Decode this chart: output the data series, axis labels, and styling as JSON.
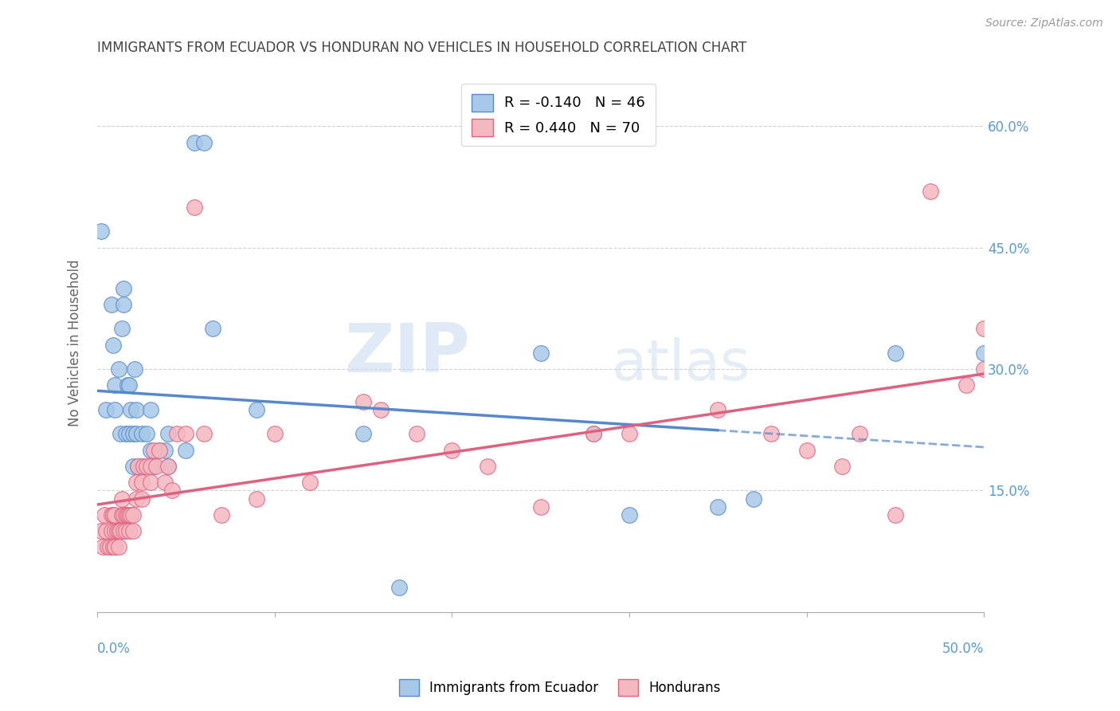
{
  "title": "IMMIGRANTS FROM ECUADOR VS HONDURAN NO VEHICLES IN HOUSEHOLD CORRELATION CHART",
  "source": "Source: ZipAtlas.com",
  "ylabel": "No Vehicles in Household",
  "right_ytick_labels": [
    "",
    "15.0%",
    "30.0%",
    "45.0%",
    "60.0%"
  ],
  "right_yticks": [
    0.0,
    0.15,
    0.3,
    0.45,
    0.6
  ],
  "xmin": 0.0,
  "xmax": 0.5,
  "ymin": 0.0,
  "ymax": 0.665,
  "ecuador_color": "#a8c8e8",
  "ecuador_line_color": "#5588cc",
  "honduran_color": "#f4b8c0",
  "honduran_line_color": "#e06080",
  "legend_r_ecuador": "-0.140",
  "legend_n_ecuador": "46",
  "legend_r_honduran": "0.440",
  "legend_n_honduran": "70",
  "ecuador_x": [
    0.002,
    0.005,
    0.008,
    0.009,
    0.01,
    0.01,
    0.012,
    0.013,
    0.014,
    0.015,
    0.015,
    0.016,
    0.017,
    0.018,
    0.018,
    0.019,
    0.02,
    0.02,
    0.021,
    0.022,
    0.022,
    0.023,
    0.025,
    0.025,
    0.028,
    0.03,
    0.03,
    0.032,
    0.035,
    0.038,
    0.04,
    0.04,
    0.05,
    0.055,
    0.06,
    0.065,
    0.09,
    0.15,
    0.17,
    0.25,
    0.28,
    0.3,
    0.35,
    0.37,
    0.45,
    0.5
  ],
  "ecuador_y": [
    0.47,
    0.25,
    0.38,
    0.33,
    0.28,
    0.25,
    0.3,
    0.22,
    0.35,
    0.4,
    0.38,
    0.22,
    0.28,
    0.22,
    0.28,
    0.25,
    0.22,
    0.18,
    0.3,
    0.22,
    0.25,
    0.18,
    0.22,
    0.18,
    0.22,
    0.25,
    0.2,
    0.18,
    0.2,
    0.2,
    0.22,
    0.18,
    0.2,
    0.58,
    0.58,
    0.35,
    0.25,
    0.22,
    0.03,
    0.32,
    0.22,
    0.12,
    0.13,
    0.14,
    0.32,
    0.32
  ],
  "honduran_x": [
    0.002,
    0.003,
    0.004,
    0.005,
    0.006,
    0.007,
    0.008,
    0.008,
    0.009,
    0.009,
    0.01,
    0.01,
    0.01,
    0.011,
    0.012,
    0.012,
    0.013,
    0.014,
    0.014,
    0.015,
    0.015,
    0.016,
    0.016,
    0.017,
    0.018,
    0.018,
    0.019,
    0.02,
    0.02,
    0.022,
    0.022,
    0.023,
    0.025,
    0.025,
    0.026,
    0.028,
    0.03,
    0.03,
    0.032,
    0.033,
    0.035,
    0.038,
    0.04,
    0.042,
    0.045,
    0.05,
    0.055,
    0.06,
    0.07,
    0.09,
    0.1,
    0.12,
    0.15,
    0.16,
    0.18,
    0.2,
    0.22,
    0.25,
    0.28,
    0.3,
    0.35,
    0.38,
    0.4,
    0.42,
    0.43,
    0.45,
    0.47,
    0.49,
    0.5,
    0.5
  ],
  "honduran_y": [
    0.1,
    0.08,
    0.12,
    0.1,
    0.08,
    0.08,
    0.1,
    0.12,
    0.08,
    0.12,
    0.1,
    0.12,
    0.08,
    0.1,
    0.08,
    0.1,
    0.1,
    0.12,
    0.14,
    0.1,
    0.12,
    0.12,
    0.1,
    0.12,
    0.1,
    0.12,
    0.12,
    0.1,
    0.12,
    0.14,
    0.16,
    0.18,
    0.14,
    0.16,
    0.18,
    0.18,
    0.18,
    0.16,
    0.2,
    0.18,
    0.2,
    0.16,
    0.18,
    0.15,
    0.22,
    0.22,
    0.5,
    0.22,
    0.12,
    0.14,
    0.22,
    0.16,
    0.26,
    0.25,
    0.22,
    0.2,
    0.18,
    0.13,
    0.22,
    0.22,
    0.25,
    0.22,
    0.2,
    0.18,
    0.22,
    0.12,
    0.52,
    0.28,
    0.3,
    0.35
  ],
  "watermark_zip": "ZIP",
  "watermark_atlas": "atlas",
  "background_color": "#ffffff",
  "grid_color": "#cccccc",
  "title_color": "#444444",
  "tick_label_color": "#5b9bd5"
}
